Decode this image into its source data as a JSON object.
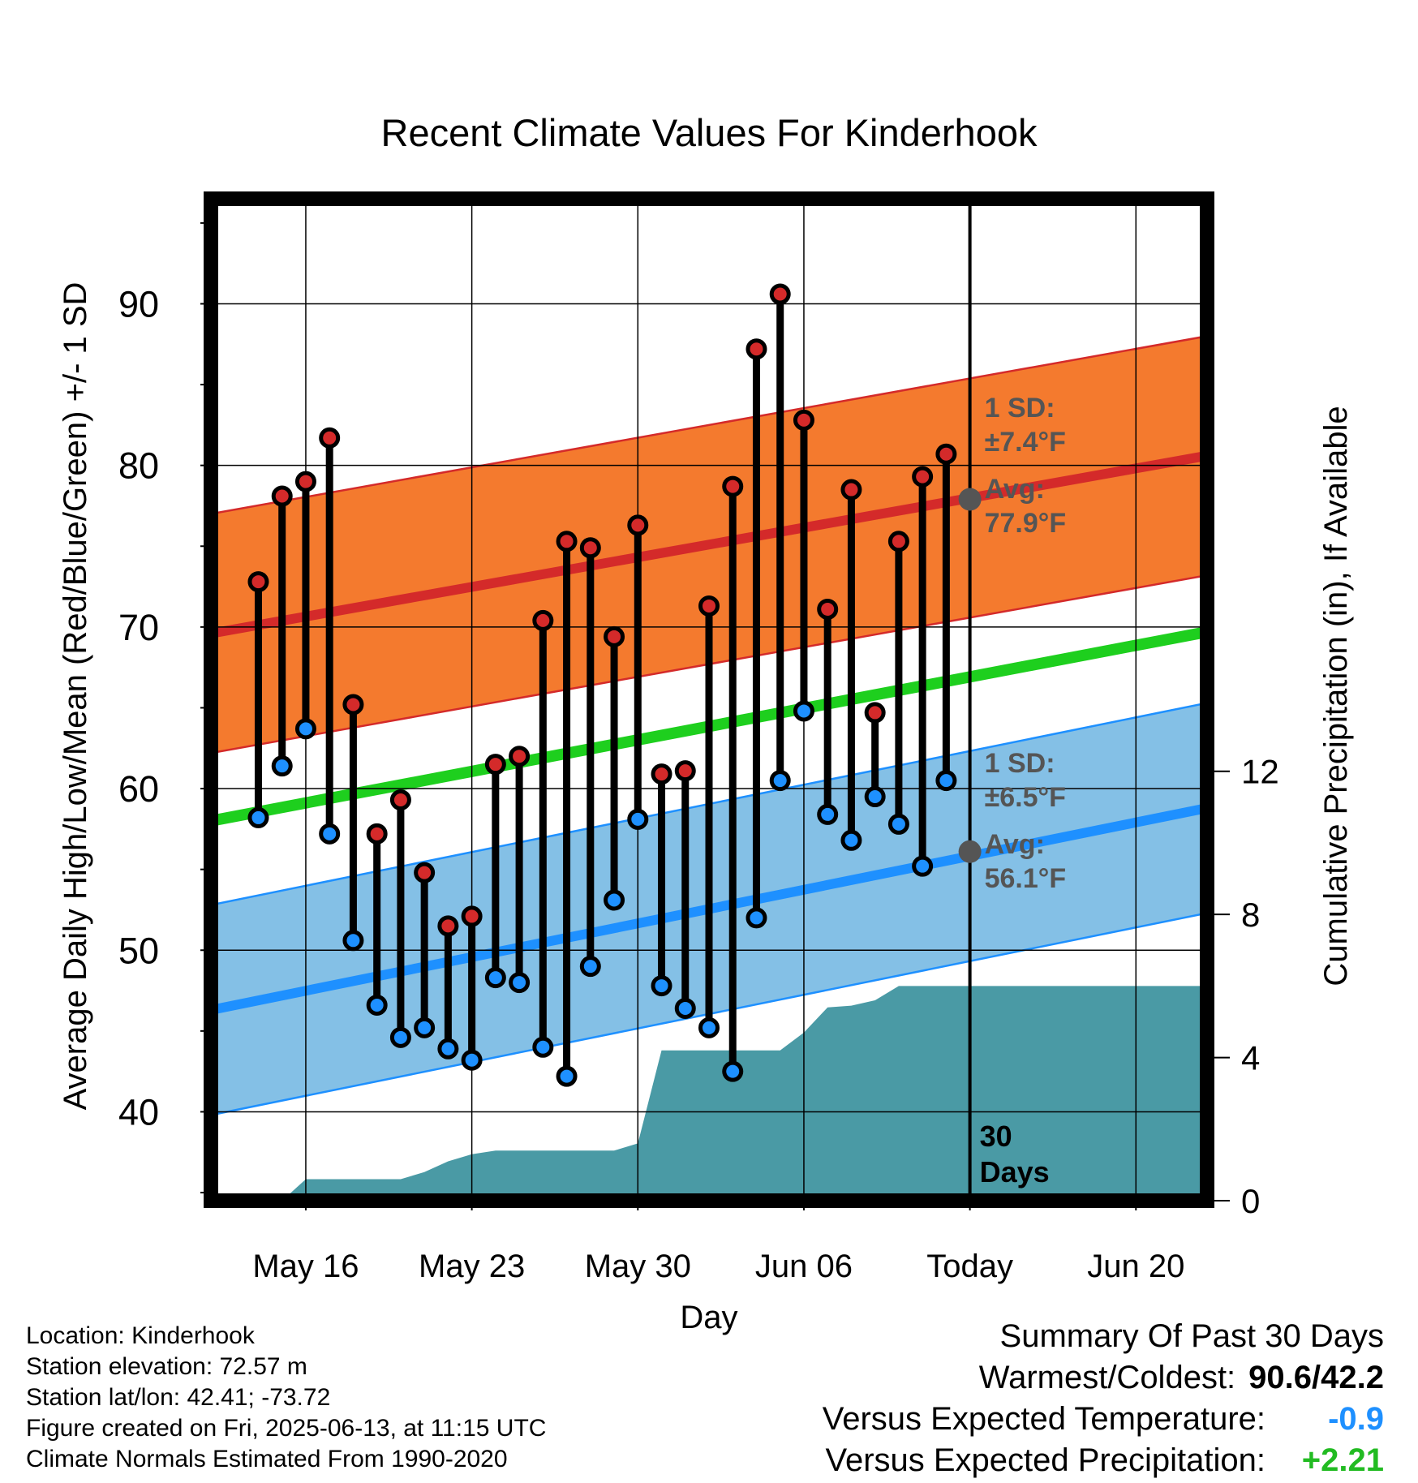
{
  "chart_data": {
    "type": "line",
    "title": "Recent Climate Values For Kinderhook",
    "xlabel": "Day",
    "ylabel": "Average Daily High/Low/Mean (Red/Blue/Green) +/- 1 SD",
    "y2label": "Cumulative Precipitation (in), If Available",
    "ylim": [
      34.5,
      96.5
    ],
    "y2lim": [
      0,
      28
    ],
    "yticks": [
      "40",
      "50",
      "60",
      "70",
      "80",
      "90"
    ],
    "y2ticks": [
      "0",
      "4",
      "8",
      "12"
    ],
    "xticks": [
      {
        "label": "May 16",
        "date": "2025-05-16"
      },
      {
        "label": "May 23",
        "date": "2025-05-23"
      },
      {
        "label": "May 30",
        "date": "2025-05-30"
      },
      {
        "label": "Jun 06",
        "date": "2025-06-06"
      },
      {
        "label": "Today",
        "date": "2025-06-13"
      },
      {
        "label": "Jun 20",
        "date": "2025-06-20"
      }
    ],
    "xlim": [
      "2025-05-12",
      "2025-06-23"
    ],
    "grid": true,
    "today": "2025-06-13",
    "today_label": [
      "30",
      "Days"
    ],
    "dates": [
      "2025-05-14",
      "2025-05-15",
      "2025-05-16",
      "2025-05-17",
      "2025-05-18",
      "2025-05-19",
      "2025-05-20",
      "2025-05-21",
      "2025-05-22",
      "2025-05-23",
      "2025-05-24",
      "2025-05-25",
      "2025-05-26",
      "2025-05-27",
      "2025-05-28",
      "2025-05-29",
      "2025-05-30",
      "2025-05-31",
      "2025-06-01",
      "2025-06-02",
      "2025-06-03",
      "2025-06-04",
      "2025-06-05",
      "2025-06-06",
      "2025-06-07",
      "2025-06-08",
      "2025-06-09",
      "2025-06-10",
      "2025-06-11",
      "2025-06-12"
    ],
    "series": [
      {
        "name": "High",
        "color": "#d42a2a",
        "values": [
          72.8,
          78.1,
          79.0,
          81.7,
          65.2,
          57.2,
          59.3,
          54.8,
          51.5,
          52.1,
          61.5,
          62.0,
          70.4,
          75.3,
          74.9,
          69.4,
          76.3,
          60.9,
          61.1,
          71.3,
          78.7,
          87.2,
          90.6,
          82.8,
          71.1,
          78.5,
          64.7,
          75.3,
          79.3,
          80.7
        ]
      },
      {
        "name": "Low",
        "color": "#1e90ff",
        "values": [
          58.2,
          61.4,
          63.7,
          57.2,
          50.6,
          46.6,
          44.6,
          45.2,
          43.9,
          43.2,
          48.3,
          48.0,
          44.0,
          42.2,
          49.0,
          53.1,
          58.1,
          47.8,
          46.4,
          45.2,
          42.5,
          52.0,
          60.5,
          64.8,
          58.4,
          56.8,
          59.5,
          57.8,
          55.2,
          60.5
        ]
      }
    ],
    "normals": {
      "dates": [
        "2025-05-12",
        "2025-06-23"
      ],
      "high_avg": [
        69.6,
        80.6
      ],
      "high_sd": 7.4,
      "low_avg": [
        46.3,
        58.8
      ],
      "low_sd": 6.5,
      "mean_avg": [
        58.0,
        69.7
      ],
      "high_label": {
        "sd": "1 SD:",
        "sd_value": "±7.4°F",
        "avg": "Avg:",
        "avg_value": "77.9°F",
        "today_value": 77.9
      },
      "low_label": {
        "sd": "1 SD:",
        "sd_value": "±6.5°F",
        "avg": "Avg:",
        "avg_value": "56.1°F",
        "today_value": 56.1
      }
    },
    "precipitation": {
      "color": "#4a9aa5",
      "points": [
        [
          "2025-05-15",
          0.0
        ],
        [
          "2025-05-16",
          0.6
        ],
        [
          "2025-05-17",
          0.6
        ],
        [
          "2025-05-18",
          0.6
        ],
        [
          "2025-05-19",
          0.6
        ],
        [
          "2025-05-20",
          0.6
        ],
        [
          "2025-05-21",
          0.8
        ],
        [
          "2025-05-22",
          1.1
        ],
        [
          "2025-05-23",
          1.3
        ],
        [
          "2025-05-24",
          1.4
        ],
        [
          "2025-05-25",
          1.4
        ],
        [
          "2025-05-26",
          1.4
        ],
        [
          "2025-05-27",
          1.4
        ],
        [
          "2025-05-28",
          1.4
        ],
        [
          "2025-05-29",
          1.4
        ],
        [
          "2025-05-30",
          1.6
        ],
        [
          "2025-05-31",
          4.2
        ],
        [
          "2025-06-01",
          4.2
        ],
        [
          "2025-06-02",
          4.2
        ],
        [
          "2025-06-03",
          4.2
        ],
        [
          "2025-06-04",
          4.2
        ],
        [
          "2025-06-05",
          4.2
        ],
        [
          "2025-06-06",
          4.7
        ],
        [
          "2025-06-07",
          5.4
        ],
        [
          "2025-06-08",
          5.45
        ],
        [
          "2025-06-09",
          5.6
        ],
        [
          "2025-06-10",
          6.0
        ],
        [
          "2025-06-23",
          6.0
        ]
      ]
    },
    "colors": {
      "high_band": "#f47a2e",
      "high_line": "#d42a2a",
      "low_band": "#84c0e6",
      "low_line": "#1e90ff",
      "mean_line": "#1ecf1e",
      "sd_text": "#555555"
    }
  },
  "footer": {
    "location": "Location: Kinderhook",
    "elevation": "Station elevation: 72.57 m",
    "latlon": "Station lat/lon: 42.41; -73.72",
    "created": "Figure created on Fri, 2025-06-13, at 11:15 UTC",
    "normals": "Climate Normals Estimated From 1990-2020"
  },
  "summary": {
    "title": "Summary Of Past 30 Days",
    "warm_cold_label": "Warmest/Coldest:",
    "warm_cold_value": "90.6/42.2",
    "temp_label": "Versus Expected Temperature:",
    "temp_value": "-0.9",
    "temp_color": "#1e90ff",
    "precip_label": "Versus Expected Precipitation:",
    "precip_value": "+2.21",
    "precip_color": "#22bb22"
  }
}
